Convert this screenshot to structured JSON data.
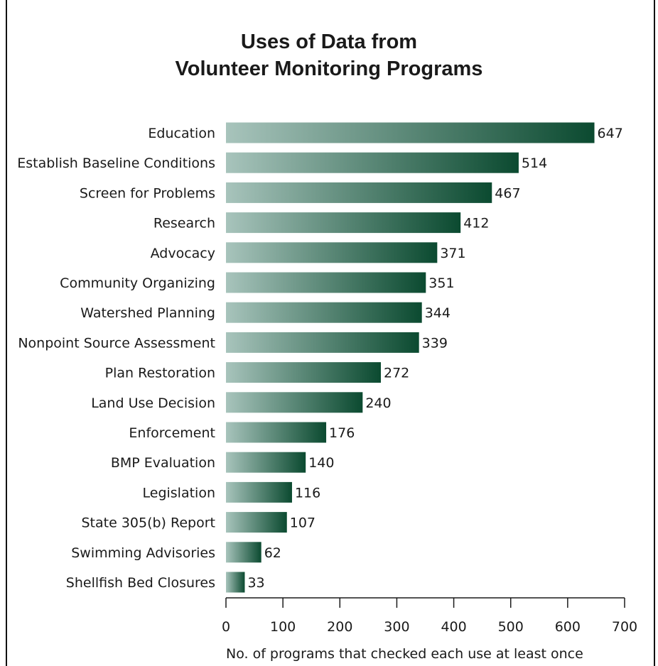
{
  "chart_data": {
    "type": "bar",
    "orientation": "horizontal",
    "title_line1": "Uses of Data from",
    "title_line2": "Volunteer Monitoring Programs",
    "xlabel": "No. of programs that checked each use at least once",
    "ylabel": "",
    "xlim": [
      0,
      700
    ],
    "xticks": [
      0,
      100,
      200,
      300,
      400,
      500,
      600,
      700
    ],
    "categories": [
      "Education",
      "Establish Baseline Conditions",
      "Screen for Problems",
      "Research",
      "Advocacy",
      "Community Organizing",
      "Watershed Planning",
      "Nonpoint Source Assessment",
      "Plan Restoration",
      "Land Use Decision",
      "Enforcement",
      "BMP Evaluation",
      "Legislation",
      "State 305(b) Report",
      "Swimming Advisories",
      "Shellfish Bed Closures"
    ],
    "values": [
      647,
      514,
      467,
      412,
      371,
      351,
      344,
      339,
      272,
      240,
      176,
      140,
      116,
      107,
      62,
      33
    ],
    "grid": false,
    "legend": "none",
    "colors": {
      "bar_start": "#a8c4bc",
      "bar_end": "#0b4a30",
      "axis": "#1a1a1a",
      "text": "#1a1a1a"
    }
  }
}
